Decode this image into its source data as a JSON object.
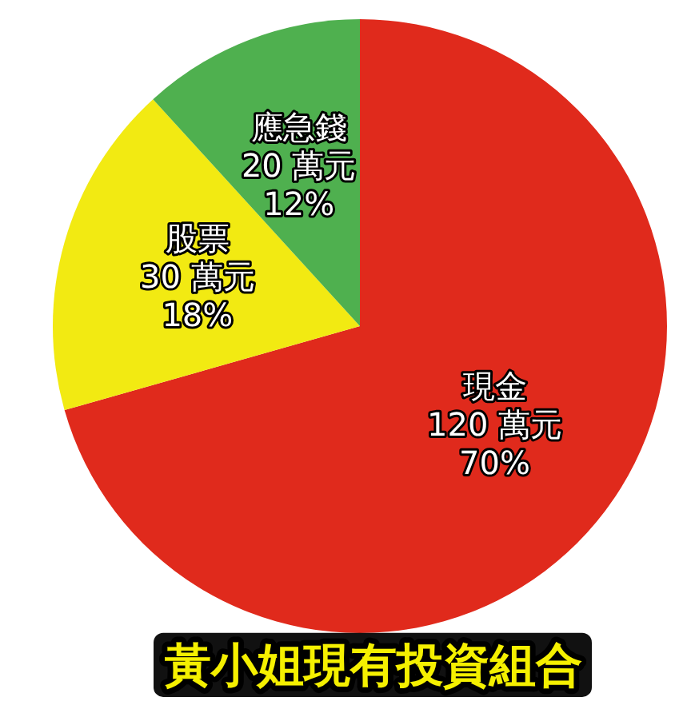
{
  "chart_data": {
    "type": "pie",
    "title": "黃小姐現有投資組合",
    "categories": [
      "現金",
      "股票",
      "應急錢"
    ],
    "values": [
      120,
      30,
      20
    ],
    "value_labels": [
      "120 萬元\n70%",
      "30 萬元\n18%",
      "20 萬元\n12%"
    ],
    "colors": [
      "#e02a1c",
      "#f2ea12",
      "#4fb04f"
    ]
  }
}
